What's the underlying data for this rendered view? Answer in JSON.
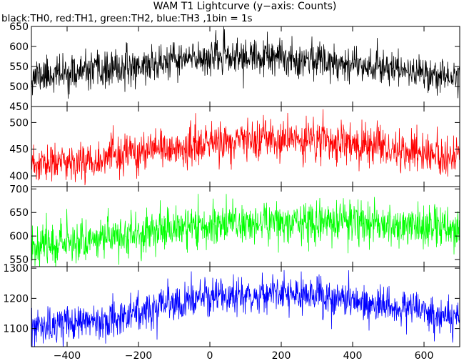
{
  "chart_data": {
    "type": "line",
    "title": "WAM T1 Lightcurve (y−axis: Counts)",
    "subtitle": "black:TH0, red:TH1, green:TH2, blue:TH3 ,1bin = 1s",
    "x": {
      "range": [
        -500,
        700
      ],
      "ticks": [
        -400,
        -200,
        0,
        200,
        400,
        600
      ],
      "tick_labels": [
        "−400",
        "−200",
        "0",
        "200",
        "400",
        "600"
      ]
    },
    "panels": [
      {
        "name": "TH0",
        "color": "#000000",
        "ylim": [
          450,
          650
        ],
        "yticks": [
          450,
          500,
          550,
          600,
          650
        ],
        "ytick_labels": [
          "450",
          "500",
          "550",
          "600",
          "650"
        ],
        "trend": [
          [
            -500,
            527
          ],
          [
            -300,
            538
          ],
          [
            -100,
            563
          ],
          [
            0,
            575
          ],
          [
            100,
            572
          ],
          [
            300,
            568
          ],
          [
            500,
            548
          ],
          [
            700,
            520
          ]
        ],
        "noise_sd": 22,
        "seed": 11
      },
      {
        "name": "TH1",
        "color": "#ff0000",
        "ylim": [
          380,
          530
        ],
        "yticks": [
          400,
          450,
          500
        ],
        "ytick_labels": [
          "400",
          "450",
          "500"
        ],
        "trend": [
          [
            -500,
            418
          ],
          [
            -300,
            433
          ],
          [
            -100,
            450
          ],
          [
            0,
            460
          ],
          [
            100,
            466
          ],
          [
            300,
            466
          ],
          [
            500,
            452
          ],
          [
            700,
            432
          ]
        ],
        "noise_sd": 18,
        "seed": 23
      },
      {
        "name": "TH2",
        "color": "#00ff00",
        "ylim": [
          535,
          705
        ],
        "yticks": [
          550,
          600,
          650,
          700
        ],
        "ytick_labels": [
          "550",
          "600",
          "650",
          "700"
        ],
        "trend": [
          [
            -500,
            582
          ],
          [
            -300,
            596
          ],
          [
            -100,
            615
          ],
          [
            0,
            625
          ],
          [
            100,
            628
          ],
          [
            300,
            630
          ],
          [
            500,
            626
          ],
          [
            700,
            612
          ]
        ],
        "noise_sd": 22,
        "seed": 37
      },
      {
        "name": "TH3",
        "color": "#0000ff",
        "ylim": [
          1040,
          1305
        ],
        "yticks": [
          1100,
          1200,
          1300
        ],
        "ytick_labels": [
          "1100",
          "1200",
          "1300"
        ],
        "trend": [
          [
            -500,
            1098
          ],
          [
            -300,
            1130
          ],
          [
            -100,
            1178
          ],
          [
            0,
            1205
          ],
          [
            100,
            1212
          ],
          [
            300,
            1207
          ],
          [
            500,
            1180
          ],
          [
            700,
            1135
          ]
        ],
        "noise_sd": 30,
        "seed": 53
      }
    ],
    "grid": false,
    "legend": "none"
  }
}
